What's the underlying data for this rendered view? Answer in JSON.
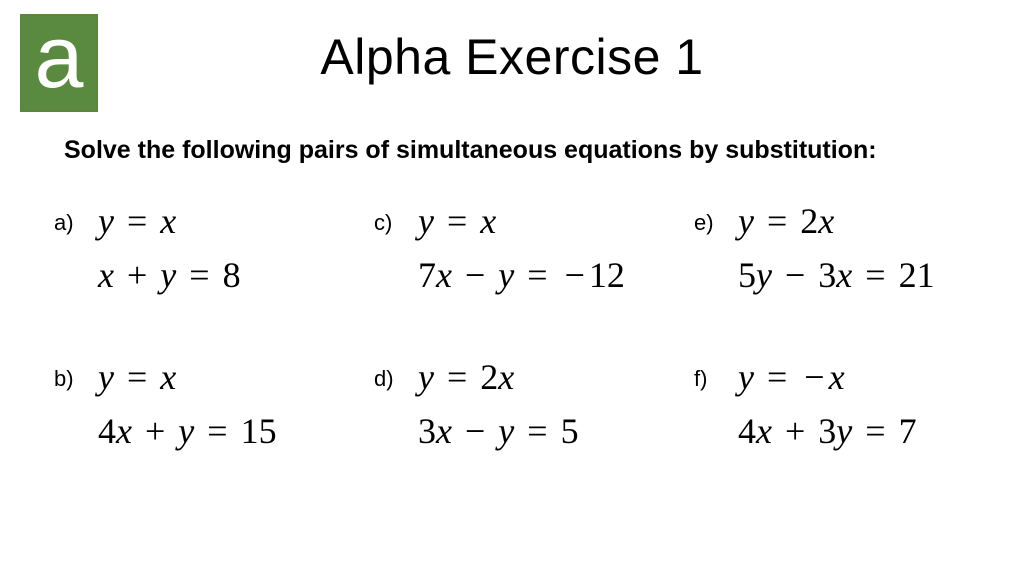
{
  "logo": {
    "letter": "a",
    "bg_color": "#5a8a3f",
    "text_color": "#ffffff"
  },
  "title": "Alpha Exercise 1",
  "title_fontsize": 50,
  "instruction": "Solve the following pairs of simultaneous equations by substitution:",
  "instruction_fontsize": 25,
  "eq_font": "Times New Roman",
  "eq_fontsize": 36,
  "problems": [
    {
      "index": "a)",
      "eq1": "y = x",
      "eq2": "x + y = 8"
    },
    {
      "index": "c)",
      "eq1": "y = x",
      "eq2": "7x − y = −12"
    },
    {
      "index": "e)",
      "eq1": "y = 2x",
      "eq2": "5y − 3x = 21"
    },
    {
      "index": "b)",
      "eq1": "y = x",
      "eq2": "4x + y = 15"
    },
    {
      "index": "d)",
      "eq1": "y = 2x",
      "eq2": "3x − y = 5"
    },
    {
      "index": "f)",
      "eq1": "y = −x",
      "eq2": "4x + 3y = 7"
    }
  ]
}
